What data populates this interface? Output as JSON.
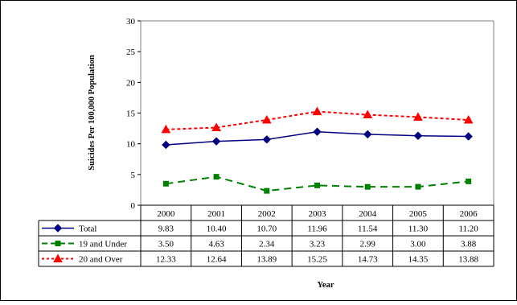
{
  "chart_data": {
    "type": "line",
    "title": "",
    "xlabel": "Year",
    "ylabel": "Suicides Per 100,000 Population",
    "categories": [
      "2000",
      "2001",
      "2002",
      "2003",
      "2004",
      "2005",
      "2006"
    ],
    "ylim": [
      0,
      30
    ],
    "yticks": [
      "0",
      "5",
      "10",
      "15",
      "20",
      "25",
      "30"
    ],
    "grid": false,
    "legend_placement": "data-table",
    "series": [
      {
        "name": "Total",
        "values": [
          9.83,
          10.4,
          10.7,
          11.96,
          11.54,
          11.3,
          11.2
        ],
        "labels": [
          "9.83",
          "10.40",
          "10.70",
          "11.96",
          "11.54",
          "11.30",
          "11.20"
        ],
        "color": "#000080",
        "line_style": "solid",
        "marker": "diamond"
      },
      {
        "name": "19 and Under",
        "values": [
          3.5,
          4.63,
          2.34,
          3.23,
          2.99,
          3.0,
          3.88
        ],
        "labels": [
          "3.50",
          "4.63",
          "2.34",
          "3.23",
          "2.99",
          "3.00",
          "3.88"
        ],
        "color": "#008000",
        "line_style": "dashed",
        "marker": "square"
      },
      {
        "name": "20 and Over",
        "values": [
          12.33,
          12.64,
          13.89,
          15.25,
          14.73,
          14.35,
          13.88
        ],
        "labels": [
          "12.33",
          "12.64",
          "13.89",
          "15.25",
          "14.73",
          "14.35",
          "13.88"
        ],
        "color": "#ff0000",
        "line_style": "dotted",
        "marker": "triangle"
      }
    ]
  }
}
